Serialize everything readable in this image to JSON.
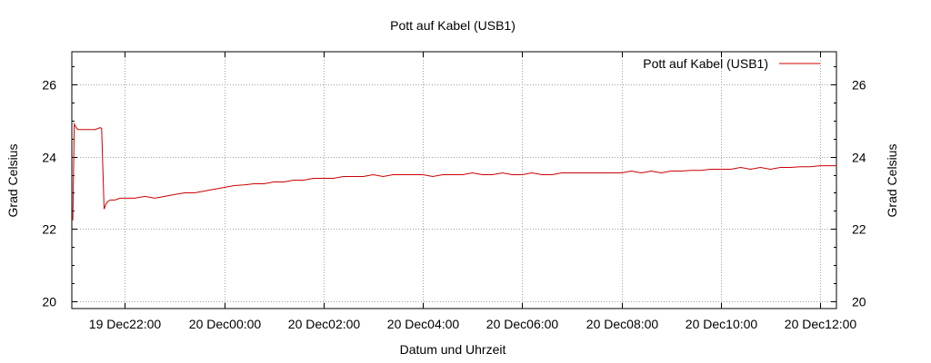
{
  "chart_data": {
    "type": "line",
    "title": "Pott auf Kabel (USB1)",
    "xlabel": "Datum und Uhrzeit",
    "ylabel": "Grad Celsius",
    "y2label": "Grad Celsius",
    "legend_position": "top-right",
    "grid": true,
    "colors": {
      "series": "#cc0000",
      "grid": "#a0a0a0",
      "axis": "#000000"
    },
    "x_unit": "hours since 19 Dec 22:00",
    "xlim": [
      -1.07,
      14.33
    ],
    "ylim": [
      19.8,
      26.9
    ],
    "x_ticks": [
      {
        "x": 0,
        "label": "19 Dec22:00"
      },
      {
        "x": 2,
        "label": "20 Dec00:00"
      },
      {
        "x": 4,
        "label": "20 Dec02:00"
      },
      {
        "x": 6,
        "label": "20 Dec04:00"
      },
      {
        "x": 8,
        "label": "20 Dec06:00"
      },
      {
        "x": 10,
        "label": "20 Dec08:00"
      },
      {
        "x": 12,
        "label": "20 Dec10:00"
      },
      {
        "x": 14,
        "label": "20 Dec12:00"
      }
    ],
    "y_ticks": [
      {
        "y": 20,
        "label": "20"
      },
      {
        "y": 22,
        "label": "22"
      },
      {
        "y": 24,
        "label": "24"
      },
      {
        "y": 26,
        "label": "26"
      }
    ],
    "series": [
      {
        "name": "Pott auf Kabel (USB1)",
        "x": [
          -1.07,
          -1.05,
          -1.02,
          -0.98,
          -0.95,
          -0.9,
          -0.8,
          -0.6,
          -0.5,
          -0.47,
          -0.42,
          -0.38,
          -0.35,
          -0.3,
          -0.2,
          -0.1,
          0,
          0.2,
          0.4,
          0.6,
          0.8,
          1.0,
          1.2,
          1.4,
          1.6,
          1.8,
          2.0,
          2.2,
          2.4,
          2.6,
          2.8,
          3.0,
          3.2,
          3.4,
          3.6,
          3.8,
          4.0,
          4.2,
          4.4,
          4.6,
          4.8,
          5.0,
          5.2,
          5.4,
          5.6,
          5.8,
          6.0,
          6.2,
          6.4,
          6.6,
          6.8,
          7.0,
          7.2,
          7.4,
          7.6,
          7.8,
          8.0,
          8.2,
          8.4,
          8.6,
          8.8,
          9.0,
          9.2,
          9.4,
          9.6,
          9.8,
          10.0,
          10.2,
          10.4,
          10.6,
          10.8,
          11.0,
          11.2,
          11.4,
          11.6,
          11.8,
          12.0,
          12.2,
          12.4,
          12.6,
          12.8,
          13.0,
          13.2,
          13.4,
          13.6,
          13.8,
          14.0,
          14.2,
          14.33
        ],
        "values": [
          22.25,
          22.25,
          24.9,
          24.8,
          24.75,
          24.75,
          24.75,
          24.75,
          24.8,
          24.78,
          22.55,
          22.7,
          22.75,
          22.8,
          22.8,
          22.85,
          22.85,
          22.85,
          22.9,
          22.85,
          22.9,
          22.95,
          23.0,
          23.0,
          23.05,
          23.1,
          23.15,
          23.2,
          23.22,
          23.25,
          23.25,
          23.3,
          23.3,
          23.35,
          23.35,
          23.4,
          23.4,
          23.4,
          23.45,
          23.45,
          23.45,
          23.5,
          23.45,
          23.5,
          23.5,
          23.5,
          23.5,
          23.45,
          23.5,
          23.5,
          23.5,
          23.55,
          23.5,
          23.5,
          23.55,
          23.5,
          23.5,
          23.55,
          23.5,
          23.5,
          23.55,
          23.55,
          23.55,
          23.55,
          23.55,
          23.55,
          23.55,
          23.6,
          23.55,
          23.6,
          23.55,
          23.6,
          23.6,
          23.62,
          23.62,
          23.65,
          23.65,
          23.65,
          23.7,
          23.65,
          23.7,
          23.65,
          23.7,
          23.7,
          23.72,
          23.72,
          23.75,
          23.75,
          23.75
        ]
      }
    ]
  }
}
